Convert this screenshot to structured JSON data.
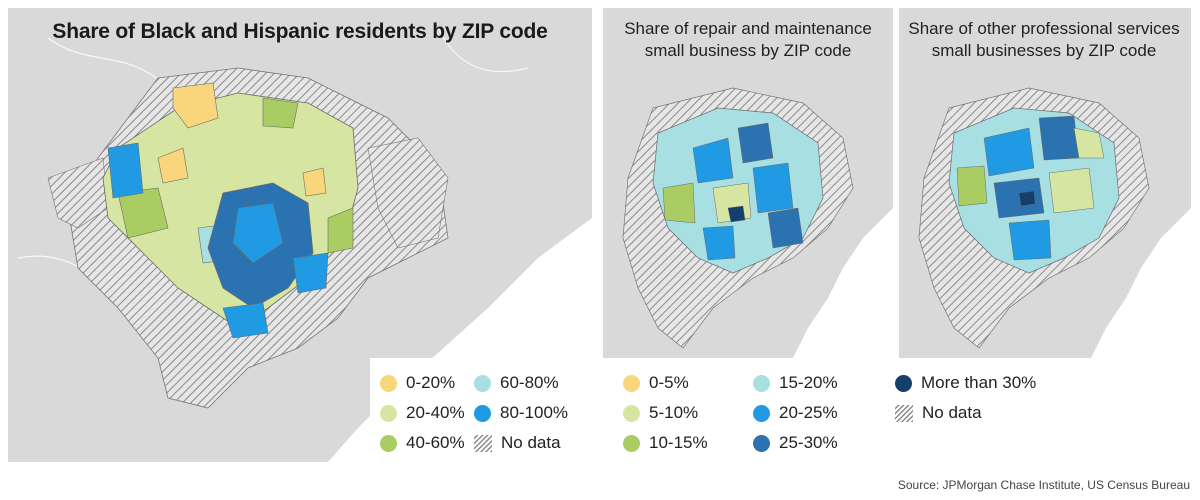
{
  "maps": {
    "left": {
      "title": "Share of Black and Hispanic residents by ZIP code",
      "legend": [
        {
          "label": "0-20%",
          "color": "#f9d67b"
        },
        {
          "label": "20-40%",
          "color": "#d6e6a2"
        },
        {
          "label": "40-60%",
          "color": "#a9cd62"
        },
        {
          "label": "60-80%",
          "color": "#a8dfe2"
        },
        {
          "label": "80-100%",
          "color": "#1f9ae3"
        },
        {
          "label": "No data",
          "color": "hatch"
        }
      ]
    },
    "right": {
      "subtitle_a": [
        "Share of repair and maintenance",
        "small business by ZIP code"
      ],
      "subtitle_b": [
        "Share of other professional services",
        "small businesses by ZIP code"
      ],
      "legend": [
        {
          "label": "0-5%",
          "color": "#f9d67b"
        },
        {
          "label": "5-10%",
          "color": "#d6e6a2"
        },
        {
          "label": "10-15%",
          "color": "#a9cd62"
        },
        {
          "label": "15-20%",
          "color": "#a8dfe2"
        },
        {
          "label": "20-25%",
          "color": "#1f9ae3"
        },
        {
          "label": "25-30%",
          "color": "#2b73b0"
        },
        {
          "label": "More than 30%",
          "color": "#143e6b"
        },
        {
          "label": "No data",
          "color": "hatch"
        }
      ]
    }
  },
  "colors": {
    "land": "#d9d9d9",
    "water": "#ffffff",
    "no_data_hatch": "#8a8a8a",
    "borders": "#6b6b6b"
  },
  "source": "Source: JPMorgan Chase Institute, US Census Bureau"
}
